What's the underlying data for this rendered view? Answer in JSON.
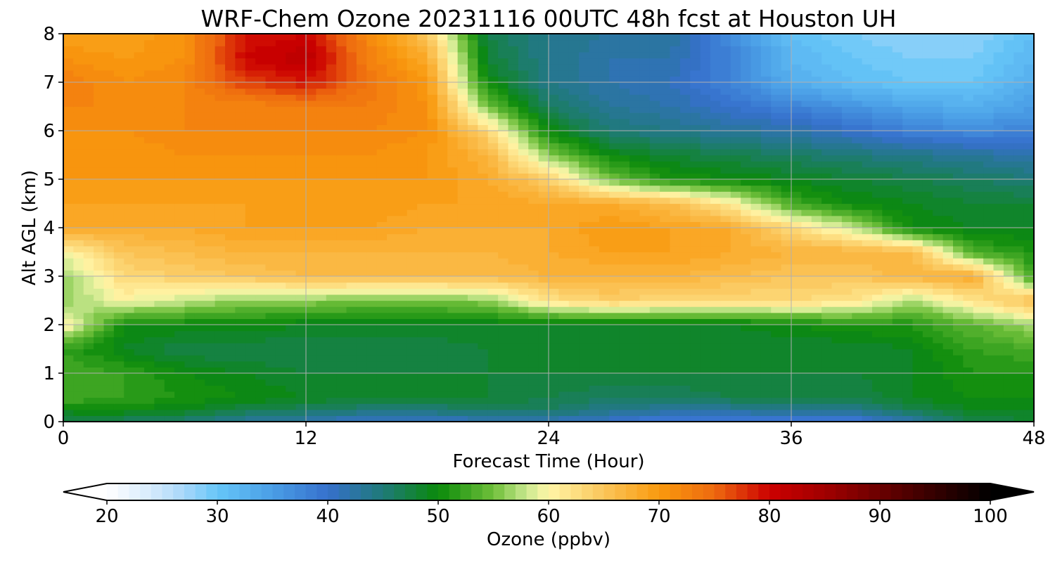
{
  "chart_data": {
    "type": "heatmap",
    "title": "WRF-Chem Ozone  20231116 00UTC 48h fcst at Houston UH",
    "xlabel": "Forecast Time (Hour)",
    "ylabel": "Alt AGL (km)",
    "xlim": [
      0,
      48
    ],
    "ylim": [
      0,
      8
    ],
    "xticks": [
      0,
      12,
      24,
      36,
      48
    ],
    "yticks": [
      0,
      1,
      2,
      3,
      4,
      5,
      6,
      7,
      8
    ],
    "grid": true,
    "x": [
      0,
      3,
      6,
      9,
      12,
      15,
      18,
      21,
      24,
      27,
      30,
      33,
      36,
      39,
      42,
      45,
      48
    ],
    "y": [
      0,
      0.25,
      0.5,
      1,
      1.5,
      2,
      2.5,
      3,
      3.5,
      4,
      4.5,
      5,
      5.5,
      6,
      6.5,
      7,
      7.5,
      8
    ],
    "z": [
      [
        46,
        46,
        45,
        43,
        42,
        40,
        40,
        41,
        41,
        40,
        38,
        38,
        38,
        38,
        42,
        47,
        48
      ],
      [
        50,
        50,
        49,
        47,
        46,
        45,
        45,
        46,
        46,
        44,
        43,
        43,
        44,
        44,
        47,
        49,
        49
      ],
      [
        53,
        52,
        51,
        50,
        49,
        48,
        48,
        48,
        47,
        46,
        46,
        47,
        47,
        47,
        49,
        50,
        50
      ],
      [
        53,
        52,
        50,
        49,
        48,
        48,
        48,
        48,
        48,
        48,
        48,
        48,
        48,
        48,
        49,
        51,
        51
      ],
      [
        52,
        49,
        47,
        47,
        47,
        47,
        47,
        48,
        48,
        48,
        48,
        48,
        48,
        48,
        49,
        52,
        53
      ],
      [
        61,
        50,
        50,
        50,
        49,
        49,
        49,
        49,
        49,
        49,
        49,
        49,
        50,
        51,
        51,
        54,
        57
      ],
      [
        56,
        60,
        58,
        56,
        56,
        55,
        55,
        56,
        62,
        64,
        63,
        63,
        63,
        62,
        57,
        62,
        66
      ],
      [
        56,
        63,
        64,
        65,
        66,
        66,
        66,
        66,
        67,
        67,
        67,
        66,
        65,
        65,
        67,
        68,
        52
      ],
      [
        60,
        65,
        66,
        67,
        67,
        67,
        67,
        67,
        68,
        69,
        69,
        68,
        67,
        67,
        66,
        53,
        51
      ],
      [
        68,
        68,
        68,
        69,
        69,
        69,
        68,
        68,
        68,
        70,
        69,
        68,
        63,
        58,
        50,
        49,
        49
      ],
      [
        69,
        69,
        69,
        69,
        69,
        70,
        69,
        69,
        68,
        68,
        66,
        61,
        53,
        50,
        49,
        48,
        48
      ],
      [
        70,
        70,
        70,
        70,
        70,
        70,
        70,
        68,
        64,
        55,
        51,
        50,
        49,
        48,
        47,
        46,
        45
      ],
      [
        71,
        70,
        71,
        71,
        71,
        71,
        70,
        67,
        56,
        50,
        48,
        47,
        46,
        45,
        44,
        43,
        42
      ],
      [
        71,
        71,
        72,
        72,
        72,
        72,
        71,
        63,
        50,
        45,
        44,
        43,
        42,
        40,
        38,
        37,
        38
      ],
      [
        72,
        72,
        72,
        72,
        73,
        73,
        71,
        55,
        46,
        43,
        42,
        40,
        38,
        36,
        34,
        33,
        35
      ],
      [
        73,
        71,
        72,
        77,
        79,
        74,
        70,
        50,
        44,
        42,
        41,
        38,
        33,
        31,
        30,
        30,
        33
      ],
      [
        71,
        70,
        71,
        80,
        82,
        73,
        68,
        48,
        44,
        42,
        42,
        38,
        32,
        30,
        29,
        29,
        32
      ],
      [
        69,
        69,
        71,
        79,
        80,
        72,
        65,
        47,
        44,
        43,
        43,
        37,
        31,
        29,
        28,
        28,
        31
      ]
    ],
    "colorbar": {
      "label": "Ozone  (ppbv)",
      "min": 20,
      "max": 100,
      "ticks": [
        20,
        30,
        40,
        50,
        60,
        70,
        80,
        90,
        100
      ],
      "extend": "both",
      "colormap": [
        [
          20,
          "#ffffff"
        ],
        [
          24,
          "#d6eafb"
        ],
        [
          27,
          "#a7d7fa"
        ],
        [
          30,
          "#66c6f8"
        ],
        [
          35,
          "#4a9ee6"
        ],
        [
          40,
          "#3670cc"
        ],
        [
          45,
          "#1f7a78"
        ],
        [
          50,
          "#0a8a0a"
        ],
        [
          55,
          "#6fbf3a"
        ],
        [
          58,
          "#c9e88f"
        ],
        [
          60,
          "#fff6a8"
        ],
        [
          65,
          "#fbc55a"
        ],
        [
          70,
          "#f99a0e"
        ],
        [
          75,
          "#ee6a0f"
        ],
        [
          80,
          "#cc0000"
        ],
        [
          85,
          "#a10000"
        ],
        [
          90,
          "#6a0000"
        ],
        [
          95,
          "#340000"
        ],
        [
          100,
          "#000000"
        ]
      ],
      "under_color": "#ffffff",
      "over_color": "#000000"
    }
  }
}
